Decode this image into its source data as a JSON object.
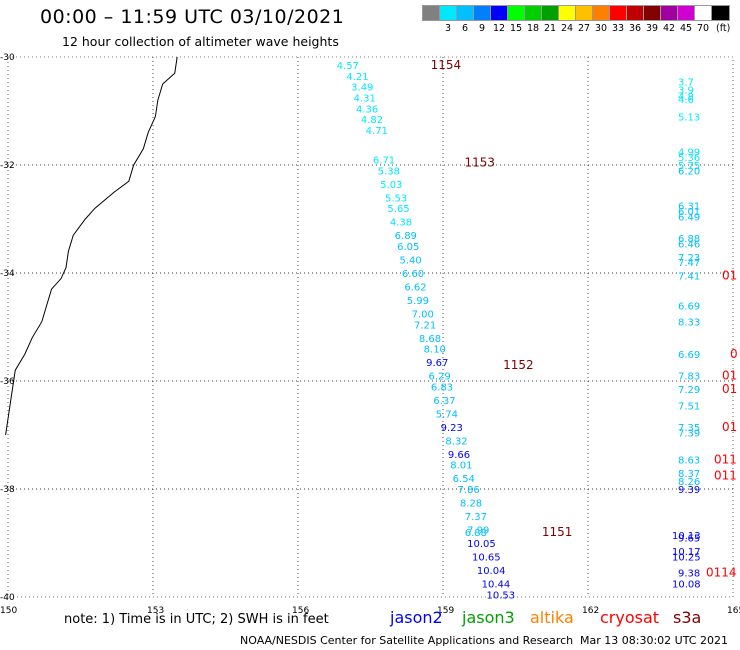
{
  "header": {
    "title": "00:00 – 11:59 UTC 03/10/2021",
    "subtitle": "12 hour collection of altimeter wave heights"
  },
  "scale": {
    "unit": "(ft)",
    "swatches": [
      {
        "color": "#808080",
        "label": ""
      },
      {
        "color": "#00e8ff",
        "label": "3"
      },
      {
        "color": "#00c0ff",
        "label": "6"
      },
      {
        "color": "#0080ff",
        "label": "9"
      },
      {
        "color": "#0000ff",
        "label": "12"
      },
      {
        "color": "#00ff00",
        "label": "15"
      },
      {
        "color": "#00d000",
        "label": "18"
      },
      {
        "color": "#00a000",
        "label": "21"
      },
      {
        "color": "#ffff00",
        "label": "24"
      },
      {
        "color": "#ffc000",
        "label": "27"
      },
      {
        "color": "#ff8000",
        "label": "30"
      },
      {
        "color": "#ff0000",
        "label": "33"
      },
      {
        "color": "#c00000",
        "label": "36"
      },
      {
        "color": "#800000",
        "label": "39"
      },
      {
        "color": "#a000a0",
        "label": "42"
      },
      {
        "color": "#d000d0",
        "label": "45"
      },
      {
        "color": "#ffffff",
        "label": "70"
      },
      {
        "color": "#000000",
        "label": ""
      }
    ]
  },
  "map": {
    "lon_range": [
      150,
      165
    ],
    "lat_range": [
      -40,
      -30
    ],
    "lon_ticks": [
      "150",
      "153",
      "156",
      "159",
      "162",
      "165"
    ],
    "lat_ticks": [
      "-30",
      "-32",
      "-34",
      "-36",
      "-38",
      "-40"
    ],
    "grid": "dotted"
  },
  "tracks": [
    {
      "time": "1154",
      "color": "#800000",
      "lon": 158.0,
      "lat": -30.15
    },
    {
      "time": "1153",
      "color": "#800000",
      "lon": 158.7,
      "lat": -31.95
    },
    {
      "time": "1152",
      "color": "#800000",
      "lon": 159.5,
      "lat": -35.7
    },
    {
      "time": "1151",
      "color": "#800000",
      "lon": 160.3,
      "lat": -38.8
    }
  ],
  "track_values": [
    {
      "v": "4.57",
      "lon": 156.8,
      "lat": -30.15,
      "c": "#00e8ff"
    },
    {
      "v": "4.21",
      "lon": 157.0,
      "lat": -30.35,
      "c": "#00e8ff"
    },
    {
      "v": "3.49",
      "lon": 157.1,
      "lat": -30.55,
      "c": "#00e8ff"
    },
    {
      "v": "4.31",
      "lon": 157.15,
      "lat": -30.75,
      "c": "#00e8ff"
    },
    {
      "v": "4.36",
      "lon": 157.2,
      "lat": -30.95,
      "c": "#00e8ff"
    },
    {
      "v": "4.82",
      "lon": 157.3,
      "lat": -31.15,
      "c": "#00e8ff"
    },
    {
      "v": "4.71",
      "lon": 157.4,
      "lat": -31.35,
      "c": "#00e8ff"
    },
    {
      "v": "6.71",
      "lon": 157.55,
      "lat": -31.9,
      "c": "#00e8ff"
    },
    {
      "v": "5.38",
      "lon": 157.65,
      "lat": -32.1,
      "c": "#00e8ff"
    },
    {
      "v": "5.03",
      "lon": 157.7,
      "lat": -32.35,
      "c": "#00e8ff"
    },
    {
      "v": "5.53",
      "lon": 157.8,
      "lat": -32.6,
      "c": "#00e8ff"
    },
    {
      "v": "5.65",
      "lon": 157.85,
      "lat": -32.8,
      "c": "#00e8ff"
    },
    {
      "v": "4.38",
      "lon": 157.9,
      "lat": -33.05,
      "c": "#00e8ff"
    },
    {
      "v": "6.89",
      "lon": 158.0,
      "lat": -33.3,
      "c": "#00c0ff"
    },
    {
      "v": "6.05",
      "lon": 158.05,
      "lat": -33.5,
      "c": "#00c0ff"
    },
    {
      "v": "5.40",
      "lon": 158.1,
      "lat": -33.75,
      "c": "#00c0ff"
    },
    {
      "v": "6.60",
      "lon": 158.15,
      "lat": -34.0,
      "c": "#00c0ff"
    },
    {
      "v": "6.62",
      "lon": 158.2,
      "lat": -34.25,
      "c": "#00c0ff"
    },
    {
      "v": "5.99",
      "lon": 158.25,
      "lat": -34.5,
      "c": "#00c0ff"
    },
    {
      "v": "7.00",
      "lon": 158.35,
      "lat": -34.75,
      "c": "#00c0ff"
    },
    {
      "v": "7.21",
      "lon": 158.4,
      "lat": -34.95,
      "c": "#00c0ff"
    },
    {
      "v": "8.68",
      "lon": 158.5,
      "lat": -35.2,
      "c": "#00c0ff"
    },
    {
      "v": "8.10",
      "lon": 158.6,
      "lat": -35.4,
      "c": "#00c0ff"
    },
    {
      "v": "9.67",
      "lon": 158.65,
      "lat": -35.65,
      "c": "#0000ff"
    },
    {
      "v": "6.29",
      "lon": 158.7,
      "lat": -35.9,
      "c": "#00c0ff"
    },
    {
      "v": "6.83",
      "lon": 158.75,
      "lat": -36.1,
      "c": "#00c0ff"
    },
    {
      "v": "6.37",
      "lon": 158.8,
      "lat": -36.35,
      "c": "#00c0ff"
    },
    {
      "v": "5.74",
      "lon": 158.85,
      "lat": -36.6,
      "c": "#00c0ff"
    },
    {
      "v": "9.23",
      "lon": 158.95,
      "lat": -36.85,
      "c": "#0000ff"
    },
    {
      "v": "8.32",
      "lon": 159.05,
      "lat": -37.1,
      "c": "#00c0ff"
    },
    {
      "v": "9.66",
      "lon": 159.1,
      "lat": -37.35,
      "c": "#0000ff"
    },
    {
      "v": "8.01",
      "lon": 159.15,
      "lat": -37.55,
      "c": "#00c0ff"
    },
    {
      "v": "6.54",
      "lon": 159.2,
      "lat": -37.8,
      "c": "#00c0ff"
    },
    {
      "v": "7.86",
      "lon": 159.3,
      "lat": -38.0,
      "c": "#00c0ff"
    },
    {
      "v": "8.28",
      "lon": 159.35,
      "lat": -38.25,
      "c": "#00c0ff"
    },
    {
      "v": "7.37",
      "lon": 159.45,
      "lat": -38.5,
      "c": "#00c0ff"
    },
    {
      "v": "7.99",
      "lon": 159.5,
      "lat": -38.75,
      "c": "#00c0ff"
    },
    {
      "v": "6.88",
      "lon": 159.45,
      "lat": -38.8,
      "c": "#00c0ff"
    },
    {
      "v": "10.05",
      "lon": 159.5,
      "lat": -39.0,
      "c": "#0000ff"
    },
    {
      "v": "10.65",
      "lon": 159.6,
      "lat": -39.25,
      "c": "#0000ff"
    },
    {
      "v": "10.04",
      "lon": 159.7,
      "lat": -39.5,
      "c": "#0000ff"
    },
    {
      "v": "10.44",
      "lon": 159.8,
      "lat": -39.75,
      "c": "#0000ff"
    },
    {
      "v": "10.53",
      "lon": 159.9,
      "lat": -39.95,
      "c": "#0000ff"
    }
  ],
  "edge_values": [
    {
      "v": "3.7",
      "lat": -30.45,
      "c": "#00e8ff"
    },
    {
      "v": "3.9",
      "lat": -30.6,
      "c": "#00e8ff"
    },
    {
      "v": "4.8",
      "lat": -30.72,
      "c": "#00e8ff"
    },
    {
      "v": "4.6",
      "lat": -30.78,
      "c": "#00e8ff"
    },
    {
      "v": "5.13",
      "lat": -31.1,
      "c": "#00e8ff"
    },
    {
      "v": "4.99",
      "lat": -31.75,
      "c": "#00e8ff"
    },
    {
      "v": "5.36",
      "lat": -31.85,
      "c": "#00e8ff"
    },
    {
      "v": "5.75",
      "lat": -32.0,
      "c": "#00e8ff"
    },
    {
      "v": "6.20",
      "lat": -32.1,
      "c": "#00c0ff"
    },
    {
      "v": "6.31",
      "lat": -32.75,
      "c": "#00c0ff"
    },
    {
      "v": "6.01",
      "lat": -32.85,
      "c": "#00c0ff"
    },
    {
      "v": "6.49",
      "lat": -32.95,
      "c": "#00c0ff"
    },
    {
      "v": "6.88",
      "lat": -33.35,
      "c": "#00c0ff"
    },
    {
      "v": "6.46",
      "lat": -33.45,
      "c": "#00c0ff"
    },
    {
      "v": "7.23",
      "lat": -33.7,
      "c": "#00c0ff"
    },
    {
      "v": "7.47",
      "lat": -33.8,
      "c": "#00c0ff"
    },
    {
      "v": "7.41",
      "lat": -34.05,
      "c": "#00c0ff"
    },
    {
      "v": "6.69",
      "lat": -34.6,
      "c": "#00c0ff"
    },
    {
      "v": "8.33",
      "lat": -34.9,
      "c": "#00c0ff"
    },
    {
      "v": "6.69",
      "lat": -35.5,
      "c": "#00c0ff"
    },
    {
      "v": "7.83",
      "lat": -35.9,
      "c": "#00c0ff"
    },
    {
      "v": "7.29",
      "lat": -36.15,
      "c": "#00c0ff"
    },
    {
      "v": "7.51",
      "lat": -36.45,
      "c": "#00c0ff"
    },
    {
      "v": "7.35",
      "lat": -36.85,
      "c": "#00c0ff"
    },
    {
      "v": "7.39",
      "lat": -36.95,
      "c": "#00c0ff"
    },
    {
      "v": "8.63",
      "lat": -37.45,
      "c": "#00c0ff"
    },
    {
      "v": "8.37",
      "lat": -37.7,
      "c": "#00c0ff"
    },
    {
      "v": "8.26",
      "lat": -37.85,
      "c": "#00c0ff"
    },
    {
      "v": "9.39",
      "lat": -38.0,
      "c": "#0000ff"
    },
    {
      "v": "10.13",
      "lat": -38.85,
      "c": "#0000ff"
    },
    {
      "v": "9.65",
      "lat": -38.9,
      "c": "#0000ff"
    },
    {
      "v": "10.17",
      "lat": -39.15,
      "c": "#0000ff"
    },
    {
      "v": "10.25",
      "lat": -39.25,
      "c": "#0000ff"
    },
    {
      "v": "9.38",
      "lat": -39.55,
      "c": "#0000ff"
    },
    {
      "v": "10.08",
      "lat": -39.75,
      "c": "#0000ff"
    }
  ],
  "edge_times": [
    {
      "v": "01",
      "lat": -34.05,
      "c": "#ff0000"
    },
    {
      "v": "0",
      "lat": -35.5,
      "c": "#ff0000"
    },
    {
      "v": "01",
      "lat": -35.9,
      "c": "#ff0000"
    },
    {
      "v": "01",
      "lat": -36.15,
      "c": "#ff0000"
    },
    {
      "v": "01",
      "lat": -36.85,
      "c": "#ff0000"
    },
    {
      "v": "011",
      "lat": -37.45,
      "c": "#ff0000"
    },
    {
      "v": "011",
      "lat": -37.75,
      "c": "#ff0000"
    },
    {
      "v": "0114",
      "lat": -39.55,
      "c": "#ff0000"
    }
  ],
  "footer": {
    "note": "note: 1) Time is in UTC; 2) SWH is in feet",
    "legend": [
      {
        "label": "jason2",
        "color": "#0000ff"
      },
      {
        "label": "jason3",
        "color": "#00a000"
      },
      {
        "label": "altika",
        "color": "#ff8000"
      },
      {
        "label": "cryosat",
        "color": "#ff0000"
      },
      {
        "label": "s3a",
        "color": "#800000"
      }
    ],
    "credit": "NOAA/NESDIS Center for Satellite Applications and Research",
    "timestamp": "Mar 13 08:30:02 UTC 2021"
  }
}
